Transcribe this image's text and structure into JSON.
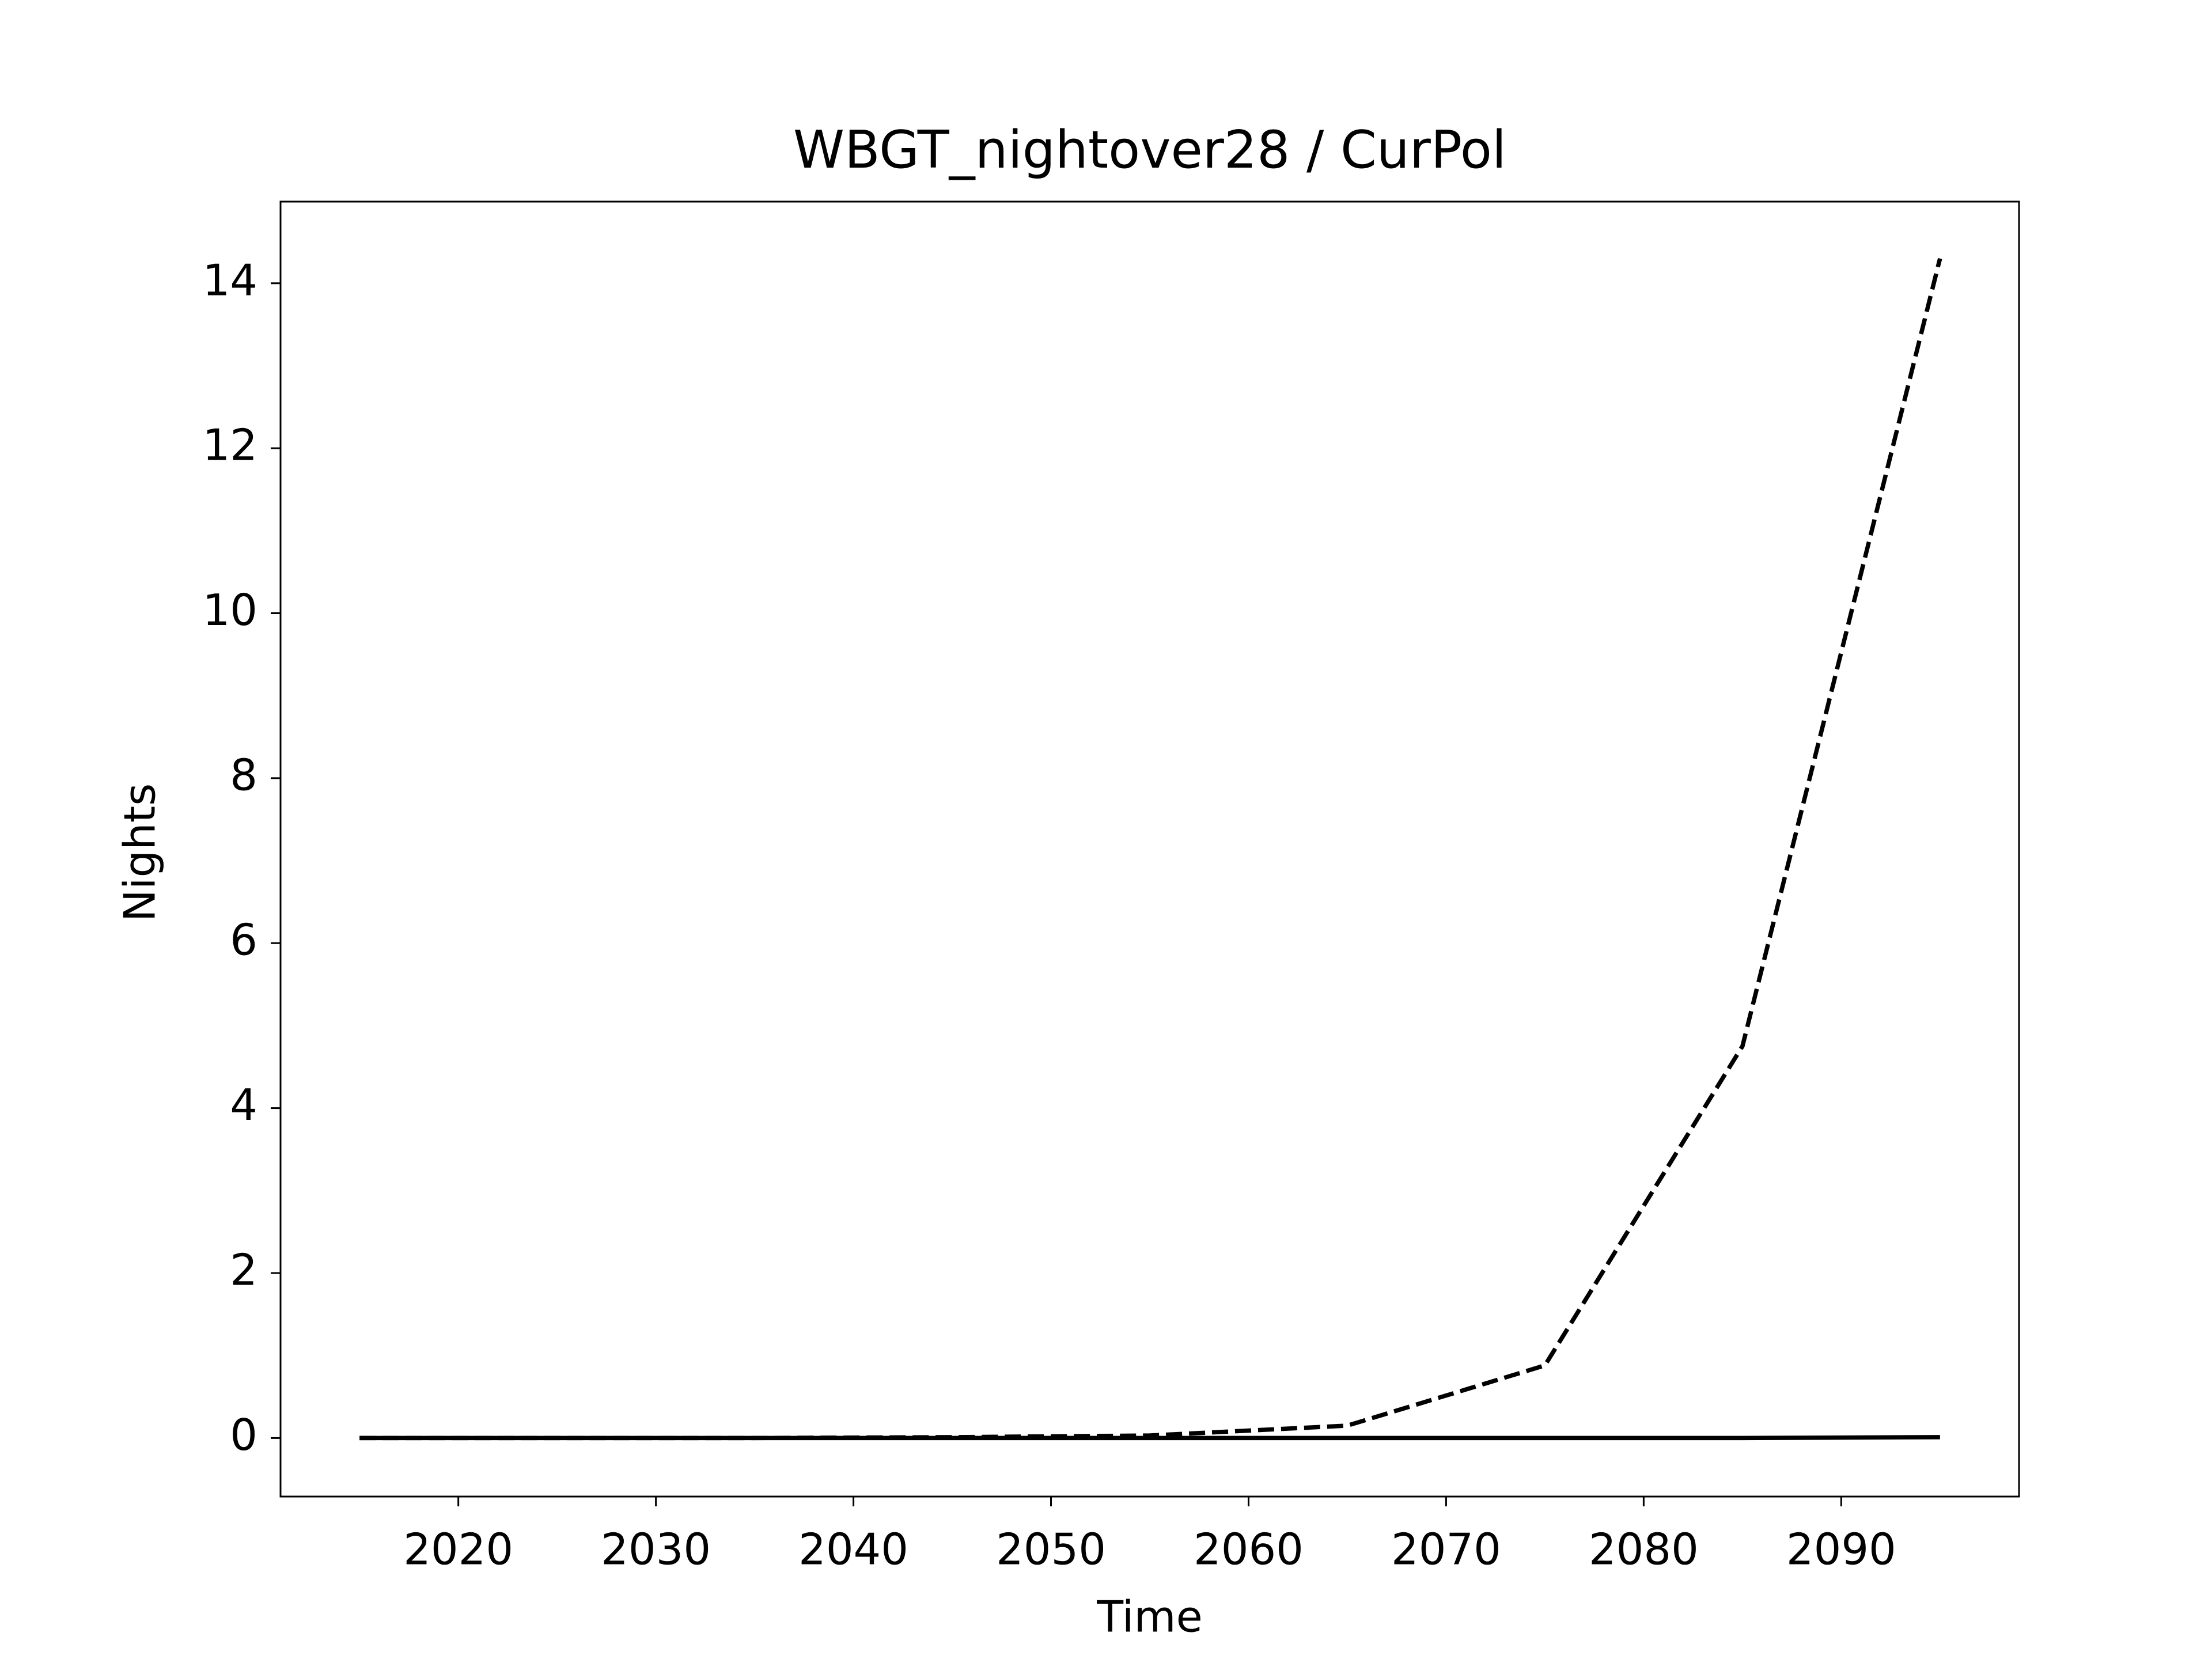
{
  "chart_data": {
    "type": "line",
    "title": "WBGT_nightover28 / CurPol",
    "xlabel": "Time",
    "ylabel": "Nights",
    "x": [
      2015,
      2025,
      2035,
      2045,
      2055,
      2065,
      2075,
      2085,
      2095
    ],
    "series": [
      {
        "color": "#000000",
        "dash": "dashed",
        "values": [
          0,
          0,
          0,
          0.01,
          0.03,
          0.15,
          0.88,
          4.75,
          14.3
        ]
      },
      {
        "color": "#000000",
        "dash": "solid",
        "values": [
          0,
          0,
          0,
          0,
          0,
          0,
          0,
          0,
          0.01
        ]
      }
    ],
    "xlim": [
      2011,
      2099
    ],
    "xticks": [
      2020,
      2030,
      2040,
      2050,
      2060,
      2070,
      2080,
      2090
    ],
    "ylim": [
      -0.71,
      14.99
    ],
    "yticks": [
      0,
      2,
      4,
      6,
      8,
      10,
      12,
      14
    ],
    "grid": false
  }
}
